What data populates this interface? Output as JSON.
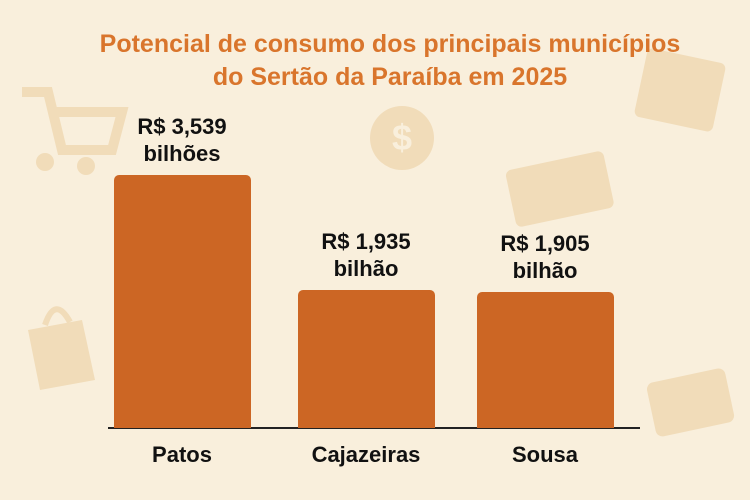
{
  "chart_data": {
    "type": "bar",
    "title": "Potencial de consumo dos principais municípios do Sertão da Paraíba em 2025",
    "categories": [
      "Patos",
      "Cajazeiras",
      "Sousa"
    ],
    "values": [
      3.539,
      1.935,
      1.905
    ],
    "value_labels": [
      "R$ 3,539 bilhões",
      "R$ 1,935 bilhão",
      "R$ 1,905 bilhão"
    ],
    "color": "#cc6624"
  }
}
